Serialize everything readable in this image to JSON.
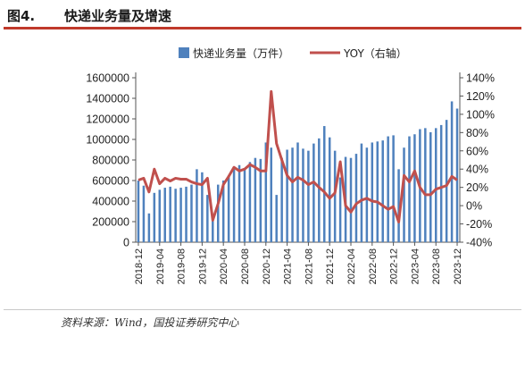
{
  "header": {
    "figure_label": "图4.",
    "title": "快递业务量及增速"
  },
  "footer": {
    "source": "资料来源：Wind，国投证券研究中心"
  },
  "colors": {
    "bar": "#4f81bd",
    "line": "#c0504d",
    "accent": "#c0392b"
  },
  "chart_data": {
    "type": "bar+line",
    "title": "",
    "legend": {
      "placement": "top",
      "entries": [
        "快递业务量（万件）",
        "YOY（右轴）"
      ]
    },
    "y_left": {
      "min": 0,
      "max": 1600000,
      "ticks": [
        0,
        200000,
        400000,
        600000,
        800000,
        1000000,
        1200000,
        1400000,
        1600000
      ],
      "labels": [
        "0",
        "200000",
        "400000",
        "600000",
        "800000",
        "1000000",
        "1200000",
        "1400000",
        "1600000"
      ]
    },
    "y_right": {
      "min": -40,
      "max": 140,
      "ticks": [
        -40,
        -20,
        0,
        20,
        40,
        60,
        80,
        100,
        120,
        140
      ],
      "labels": [
        "-40%",
        "-20%",
        "0%",
        "20%",
        "40%",
        "60%",
        "80%",
        "100%",
        "120%",
        "140%"
      ]
    },
    "x_tick_labels": [
      "2018-12",
      "2019-04",
      "2019-08",
      "2019-12",
      "2020-04",
      "2020-08",
      "2020-12",
      "2021-04",
      "2021-08",
      "2021-12",
      "2022-04",
      "2022-08",
      "2022-12",
      "2023-04",
      "2023-08",
      "2023-12"
    ],
    "categories": [
      "2018-12",
      "2019-01",
      "2019-02",
      "2019-03",
      "2019-04",
      "2019-05",
      "2019-06",
      "2019-07",
      "2019-08",
      "2019-09",
      "2019-10",
      "2019-11",
      "2019-12",
      "2020-01",
      "2020-02",
      "2020-03",
      "2020-04",
      "2020-05",
      "2020-06",
      "2020-07",
      "2020-08",
      "2020-09",
      "2020-10",
      "2020-11",
      "2020-12",
      "2021-01",
      "2021-02",
      "2021-03",
      "2021-04",
      "2021-05",
      "2021-06",
      "2021-07",
      "2021-08",
      "2021-09",
      "2021-10",
      "2021-11",
      "2021-12",
      "2022-01",
      "2022-02",
      "2022-03",
      "2022-04",
      "2022-05",
      "2022-06",
      "2022-07",
      "2022-08",
      "2022-09",
      "2022-10",
      "2022-11",
      "2022-12",
      "2023-01",
      "2023-02",
      "2023-03",
      "2023-04",
      "2023-05",
      "2023-06",
      "2023-07",
      "2023-08",
      "2023-09",
      "2023-10",
      "2023-11",
      "2023-12"
    ],
    "series": [
      {
        "name": "快递业务量（万件）",
        "kind": "bar",
        "axis": "left",
        "values": [
          600000,
          550000,
          280000,
          480000,
          510000,
          530000,
          540000,
          520000,
          530000,
          540000,
          560000,
          710000,
          680000,
          460000,
          230000,
          560000,
          600000,
          650000,
          710000,
          750000,
          720000,
          780000,
          820000,
          810000,
          970000,
          920000,
          460000,
          820000,
          900000,
          920000,
          970000,
          910000,
          890000,
          960000,
          1010000,
          1130000,
          1020000,
          890000,
          630000,
          830000,
          820000,
          860000,
          960000,
          920000,
          970000,
          980000,
          990000,
          1030000,
          1040000,
          710000,
          920000,
          1030000,
          1050000,
          1100000,
          1110000,
          1070000,
          1110000,
          1140000,
          1190000,
          1370000,
          1300000
        ]
      },
      {
        "name": "YOY（右轴）",
        "kind": "line",
        "axis": "right",
        "values": [
          28,
          30,
          15,
          40,
          24,
          30,
          27,
          30,
          29,
          29,
          26,
          24,
          23,
          30,
          -16,
          2,
          23,
          32,
          42,
          38,
          40,
          45,
          42,
          38,
          38,
          125,
          68,
          50,
          33,
          26,
          31,
          28,
          23,
          26,
          20,
          15,
          8,
          14,
          48,
          0,
          -7,
          2,
          6,
          8,
          5,
          4,
          0,
          -4,
          -1,
          -18,
          33,
          26,
          38,
          20,
          12,
          12,
          18,
          20,
          22,
          32,
          28
        ]
      }
    ]
  }
}
